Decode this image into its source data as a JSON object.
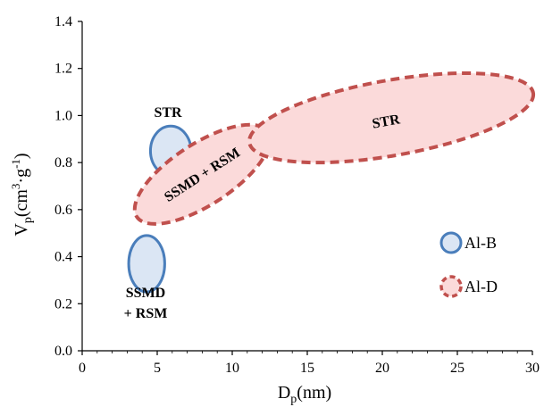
{
  "chart_data": {
    "type": "scatter",
    "xlabel": {
      "main": "D",
      "sub": "p",
      "unit": "(nm)"
    },
    "ylabel": {
      "main": "V",
      "sub": "p",
      "unit_a": "(cm",
      "sup1": "3",
      "unit_b": "·g",
      "sup2": "-1",
      "unit_c": ")"
    },
    "xlim": [
      0,
      30
    ],
    "ylim": [
      0,
      1.4
    ],
    "xticks": [
      0,
      5,
      10,
      15,
      20,
      25,
      30
    ],
    "yticks": [
      0.0,
      0.2,
      0.4,
      0.6,
      0.8,
      1.0,
      1.2,
      1.4
    ],
    "xtick_labels": [
      "0",
      "5",
      "10",
      "15",
      "20",
      "25",
      "30"
    ],
    "ytick_labels": [
      "0.0",
      "0.2",
      "0.4",
      "0.6",
      "0.8",
      "1.0",
      "1.2",
      "1.4"
    ],
    "grid": false,
    "legend_position": "right",
    "series": [
      {
        "name": "Al-B",
        "style": "solid",
        "stroke_color": "#4a7ebb",
        "fill_color": "#dbe6f4",
        "regions": [
          {
            "center_x": 4.3,
            "center_y": 0.37,
            "radius_x": 1.2,
            "radius_y": 0.12,
            "rotation_deg": 0,
            "label": [
              "SSMD",
              "+ RSM"
            ]
          },
          {
            "center_x": 5.9,
            "center_y": 0.85,
            "radius_x": 1.35,
            "radius_y": 0.105,
            "rotation_deg": 0,
            "label": [
              "STR"
            ]
          }
        ]
      },
      {
        "name": "Al-D",
        "style": "dashed",
        "stroke_color": "#c0504d",
        "fill_color": "#fbdada",
        "regions": [
          {
            "center_x": 8.0,
            "center_y": 0.75,
            "radius_x": 5.2,
            "radius_y": 0.13,
            "rotation_deg": -33,
            "label": [
              "SSMD + RSM"
            ]
          },
          {
            "center_x": 20.6,
            "center_y": 0.99,
            "radius_x": 9.6,
            "radius_y": 0.16,
            "rotation_deg": -10,
            "label": [
              "STR"
            ]
          }
        ]
      }
    ]
  }
}
